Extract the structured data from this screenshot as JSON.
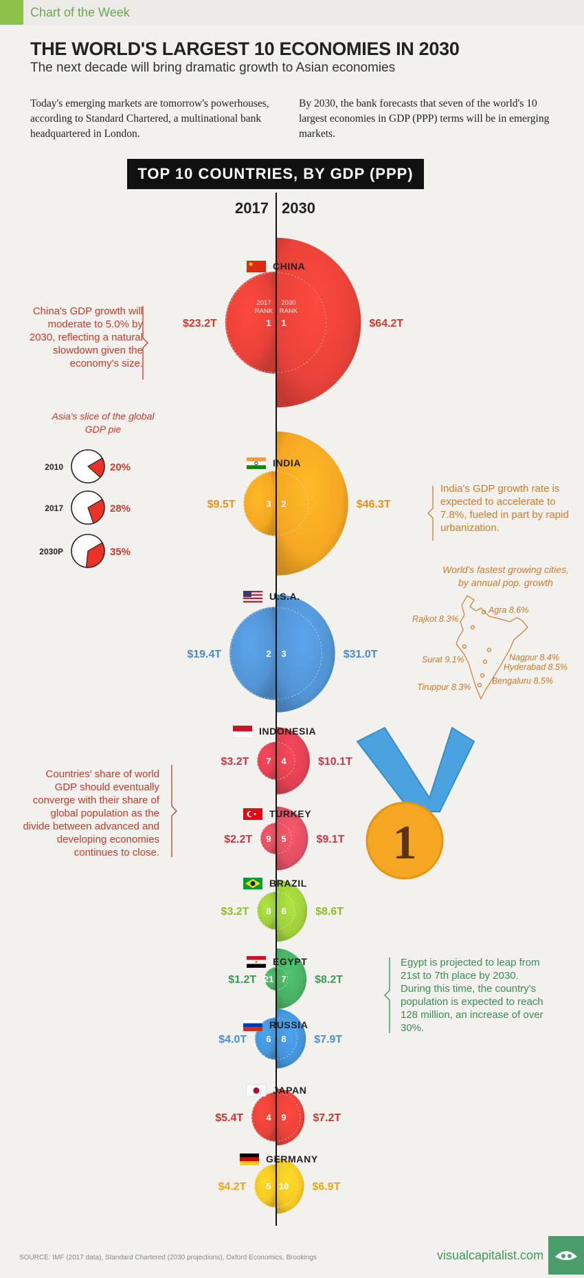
{
  "header": {
    "kicker": "Chart of the Week",
    "title": "THE WORLD'S LARGEST 10 ECONOMIES IN 2030",
    "subtitle": "The next decade will bring dramatic growth to Asian economies",
    "intro_left": "Today's emerging markets are tomorrow's powerhouses, according to Standard Chartered, a multinational bank headquartered in London.",
    "intro_right": "By 2030, the bank forecasts that seven of the world's 10 largest economies in GDP (PPP) terms will be in emerging markets."
  },
  "banner": "TOP 10 COUNTRIES, BY GDP (PPP)",
  "year_left": "2017",
  "year_right": "2030",
  "rank_header_left": [
    "2017",
    "RANK"
  ],
  "rank_header_right": [
    "2030",
    "RANK"
  ],
  "chart_data": {
    "type": "bubble",
    "title": "TOP 10 COUNTRIES, BY GDP (PPP)",
    "unit": "USD trillions (PPP)",
    "series_names": [
      "2017",
      "2030"
    ],
    "countries": [
      {
        "name": "CHINA",
        "gdp_2017": 23.2,
        "gdp_2030": 64.2,
        "label_2017": "$23.2T",
        "label_2030": "$64.2T",
        "rank_2017": "1",
        "rank_2030": "1",
        "color": "#e8392f"
      },
      {
        "name": "INDIA",
        "gdp_2017": 9.5,
        "gdp_2030": 46.3,
        "label_2017": "$9.5T",
        "label_2030": "$46.3T",
        "rank_2017": "3",
        "rank_2030": "2",
        "color": "#f5a418"
      },
      {
        "name": "U.S.A.",
        "gdp_2017": 19.4,
        "gdp_2030": 31.0,
        "label_2017": "$19.4T",
        "label_2030": "$31.0T",
        "rank_2017": "2",
        "rank_2030": "3",
        "color": "#4a90d4"
      },
      {
        "name": "INDONESIA",
        "gdp_2017": 3.2,
        "gdp_2030": 10.1,
        "label_2017": "$3.2T",
        "label_2030": "$10.1T",
        "rank_2017": "7",
        "rank_2030": "4",
        "color": "#e0384b"
      },
      {
        "name": "TURKEY",
        "gdp_2017": 2.2,
        "gdp_2030": 9.1,
        "label_2017": "$2.2T",
        "label_2030": "$9.1T",
        "rank_2017": "9",
        "rank_2030": "5",
        "color": "#e0475a"
      },
      {
        "name": "BRAZIL",
        "gdp_2017": 3.2,
        "gdp_2030": 8.6,
        "label_2017": "$3.2T",
        "label_2030": "$8.6T",
        "rank_2017": "8",
        "rank_2030": "6",
        "color": "#9acd32"
      },
      {
        "name": "EGYPT",
        "gdp_2017": 1.2,
        "gdp_2030": 8.2,
        "label_2017": "$1.2T",
        "label_2030": "$8.2T",
        "rank_2017": "21",
        "rank_2030": "7",
        "color": "#3fae5c"
      },
      {
        "name": "RUSSIA",
        "gdp_2017": 4.0,
        "gdp_2030": 7.9,
        "label_2017": "$4.0T",
        "label_2030": "$7.9T",
        "rank_2017": "6",
        "rank_2030": "8",
        "color": "#3c8fd8"
      },
      {
        "name": "JAPAN",
        "gdp_2017": 5.4,
        "gdp_2030": 7.2,
        "label_2017": "$5.4T",
        "label_2030": "$7.2T",
        "rank_2017": "4",
        "rank_2030": "9",
        "color": "#e8392f"
      },
      {
        "name": "GERMANY",
        "gdp_2017": 4.2,
        "gdp_2030": 6.9,
        "label_2017": "$4.2T",
        "label_2030": "$6.9T",
        "rank_2017": "5",
        "rank_2030": "10",
        "color": "#f5c418"
      }
    ],
    "asia_pie": {
      "title": "Asia's slice of the global GDP pie",
      "entries": [
        {
          "year": "2010",
          "share": 0.2,
          "label": "20%"
        },
        {
          "year": "2017",
          "share": 0.28,
          "label": "28%"
        },
        {
          "year": "2030P",
          "share": 0.35,
          "label": "35%"
        }
      ]
    }
  },
  "notes": {
    "china": "China's GDP growth will moderate to 5.0% by 2030, reflecting a natural slowdown given the economy's size.",
    "india": "India's GDP growth rate is expected to accelerate to 7.8%, fueled in part by rapid urbanization.",
    "share": "Countries' share of world GDP should eventually converge with their share of global population as the divide between advanced and developing economies continues to close.",
    "egypt": "Egypt is projected to leap from 21st to 7th place by 2030. During this time, the country's population is expected to reach 128 million, an increase of over 30%."
  },
  "cities": {
    "title": "World's fastest growing cities, by annual pop. growth",
    "items": [
      "Agra 8.6%",
      "Rajkot 8.3%",
      "Surat 9.1%",
      "Nagpur 8.4%",
      "Hyderabad 8.5%",
      "Bengaluru 8.5%",
      "Tiruppur 8.3%"
    ]
  },
  "medal_text": "1",
  "footer": {
    "source": "SOURCE: IMF (2017 data), Standard Chartered (2030 projections), Oxford Economics, Brookings",
    "brand": "visualcapitalist.com"
  },
  "colors": {
    "accent_red": "#c6392b",
    "accent_orange": "#d07a2a",
    "accent_green": "#3b8a55",
    "brand_green": "#8bc34a"
  }
}
